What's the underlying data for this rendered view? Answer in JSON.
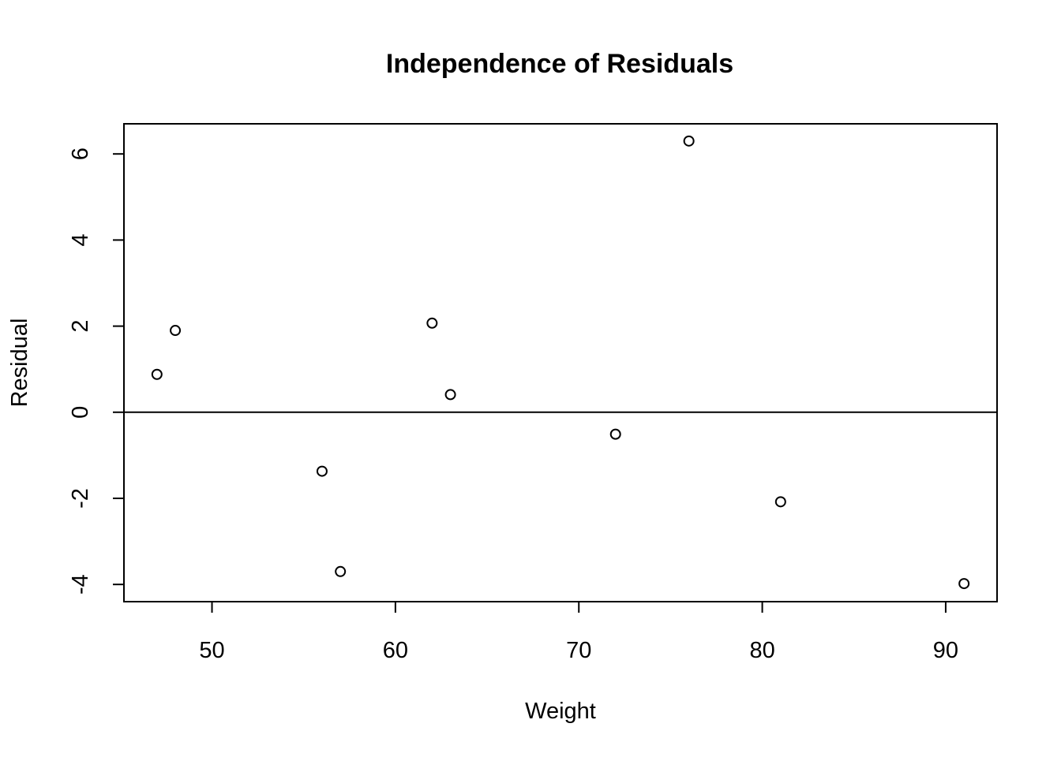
{
  "chart_data": {
    "type": "scatter",
    "title": "Independence of Residuals",
    "xlabel": "Weight",
    "ylabel": "Residual",
    "xlim": [
      45.2,
      92.8
    ],
    "ylim": [
      -4.4,
      6.7
    ],
    "x_ticks": [
      50,
      60,
      70,
      80,
      90
    ],
    "x_tick_labels": [
      "50",
      "60",
      "70",
      "80",
      "90"
    ],
    "y_ticks": [
      -4,
      -2,
      0,
      2,
      4,
      6
    ],
    "y_tick_labels": [
      "-4",
      "-2",
      "0",
      "2",
      "4",
      "6"
    ],
    "reference_line_y": 0,
    "grid": false,
    "marker": "open-circle",
    "series": [
      {
        "x": [
          47,
          48,
          56,
          57,
          62,
          63,
          72,
          76,
          81,
          91
        ],
        "y": [
          0.88,
          1.9,
          -1.37,
          -3.7,
          2.07,
          0.41,
          -0.51,
          6.3,
          -2.08,
          -3.98
        ]
      }
    ]
  }
}
